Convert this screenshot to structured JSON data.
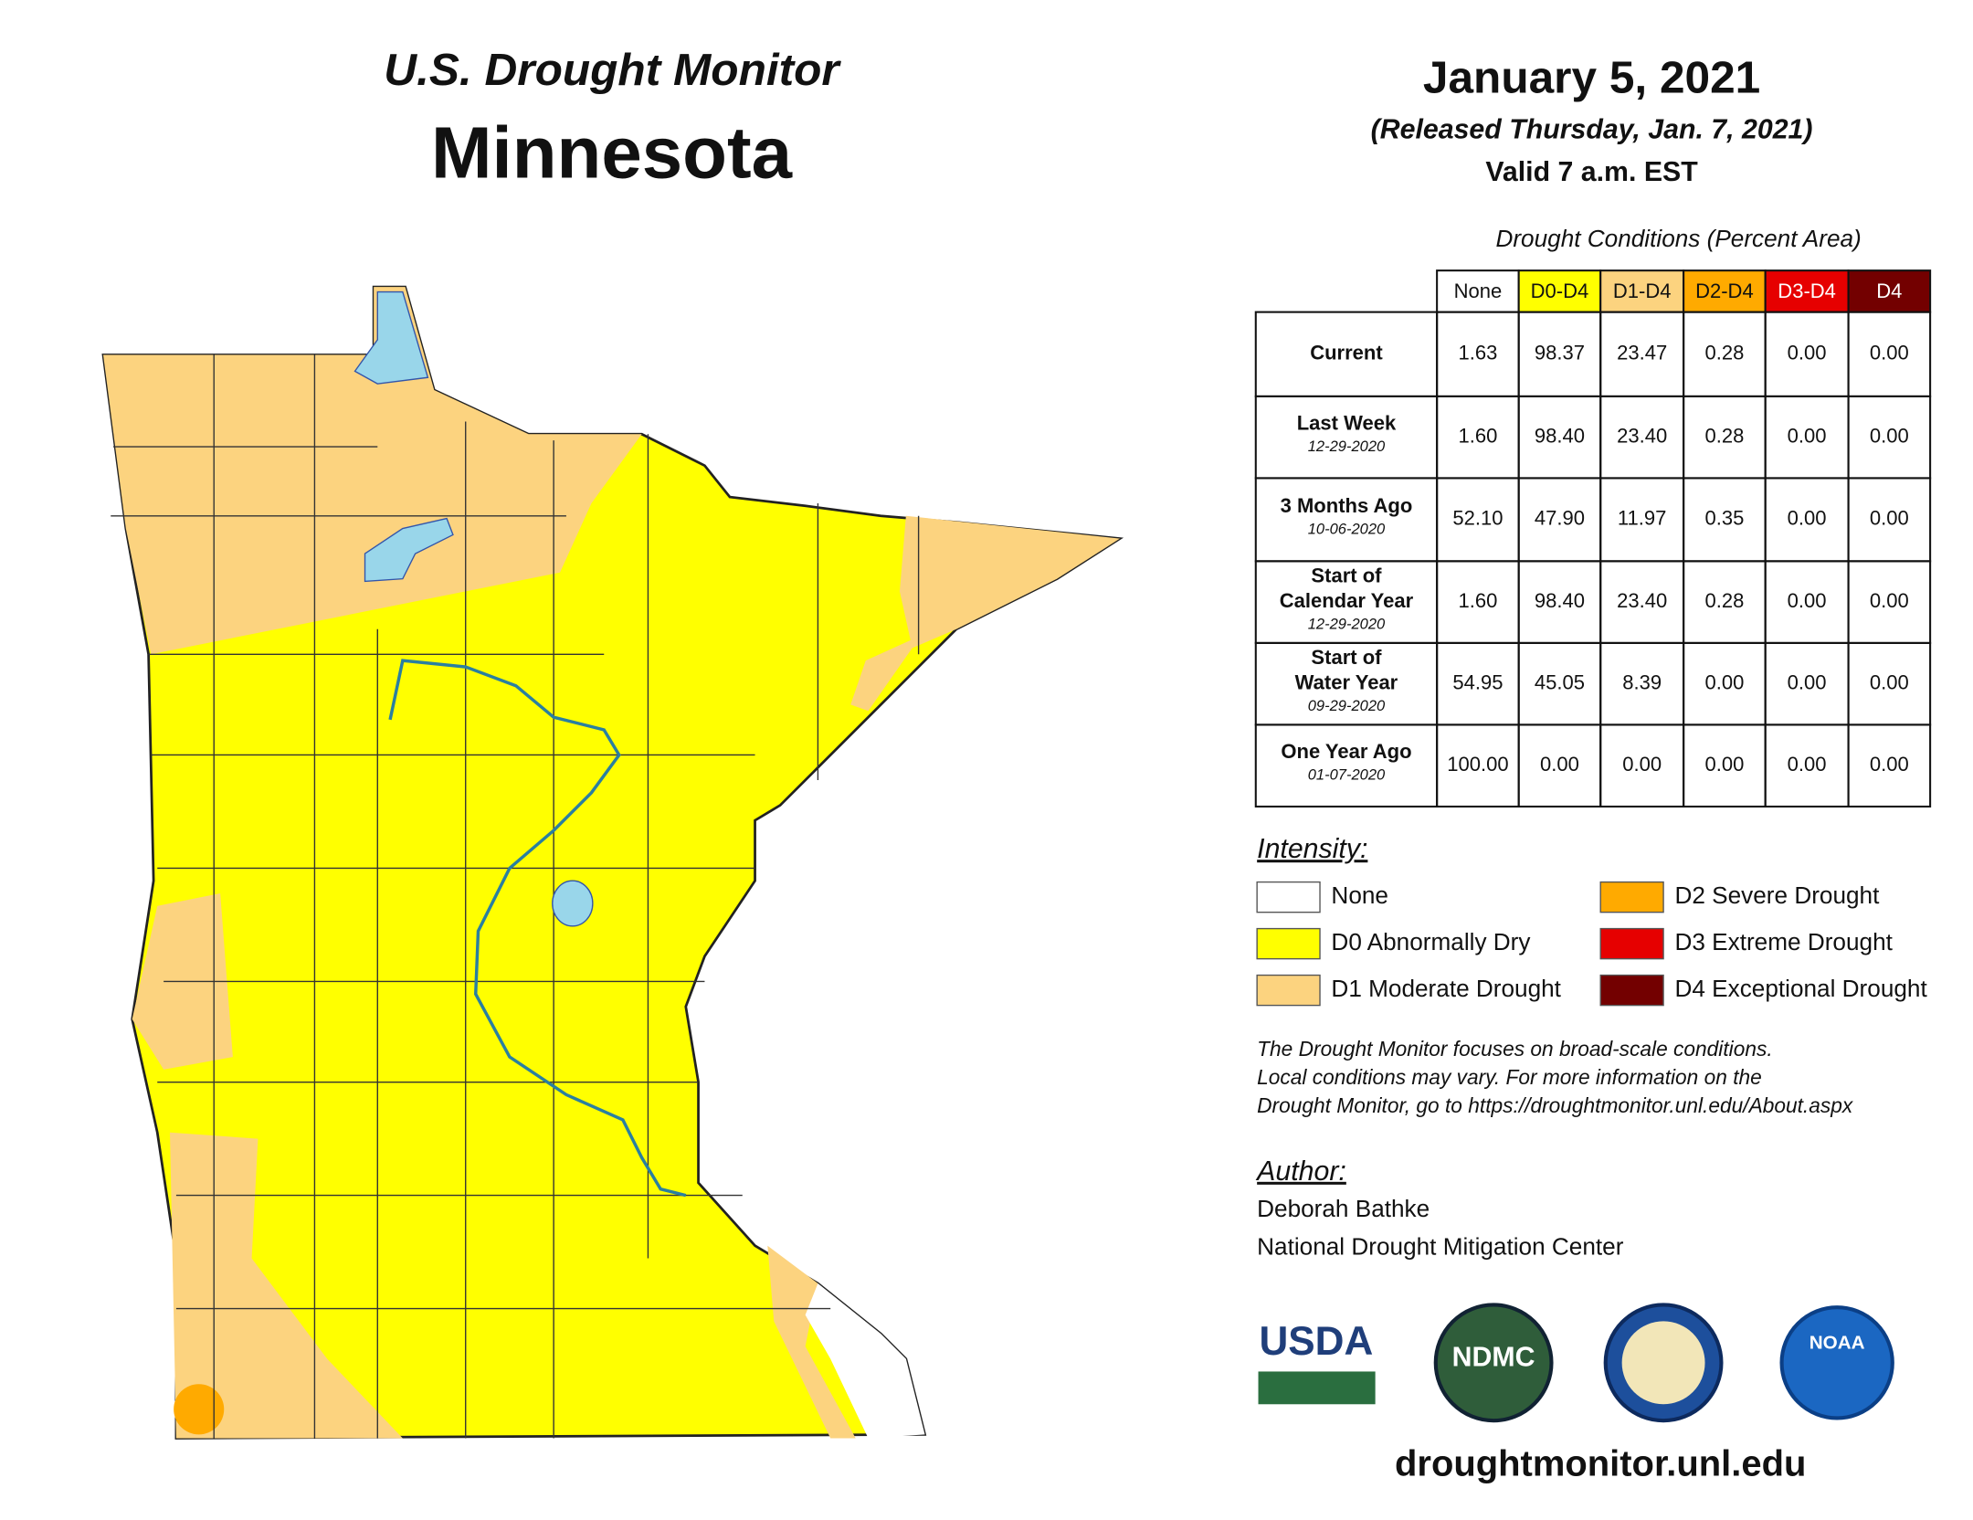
{
  "header": {
    "title": "U.S. Drought Monitor",
    "state": "Minnesota",
    "date": "January 5, 2021",
    "released": "(Released Thursday, Jan. 7, 2021)",
    "valid": "Valid 7 a.m. EST"
  },
  "table": {
    "caption": "Drought Conditions (Percent Area)",
    "columns": [
      {
        "label": "None",
        "color": "#ffffff",
        "text_color": "#111111"
      },
      {
        "label": "D0-D4",
        "color": "#ffff00",
        "text_color": "#111111"
      },
      {
        "label": "D1-D4",
        "color": "#fcd37f",
        "text_color": "#111111"
      },
      {
        "label": "D2-D4",
        "color": "#ffaa00",
        "text_color": "#111111"
      },
      {
        "label": "D3-D4",
        "color": "#e60000",
        "text_color": "#ffffff"
      },
      {
        "label": "D4",
        "color": "#730000",
        "text_color": "#ffffff"
      }
    ],
    "rows": [
      {
        "label": [
          "Current"
        ],
        "values": [
          "1.63",
          "98.37",
          "23.47",
          "0.28",
          "0.00",
          "0.00"
        ]
      },
      {
        "label": [
          "Last Week"
        ],
        "date": "12-29-2020",
        "values": [
          "1.60",
          "98.40",
          "23.40",
          "0.28",
          "0.00",
          "0.00"
        ]
      },
      {
        "label": [
          "3 Months Ago"
        ],
        "date": "10-06-2020",
        "values": [
          "52.10",
          "47.90",
          "11.97",
          "0.35",
          "0.00",
          "0.00"
        ]
      },
      {
        "label": [
          "Start of",
          "Calendar Year"
        ],
        "date": "12-29-2020",
        "values": [
          "1.60",
          "98.40",
          "23.40",
          "0.28",
          "0.00",
          "0.00"
        ]
      },
      {
        "label": [
          "Start of",
          "Water Year"
        ],
        "date": "09-29-2020",
        "values": [
          "54.95",
          "45.05",
          "8.39",
          "0.00",
          "0.00",
          "0.00"
        ]
      },
      {
        "label": [
          "One Year Ago"
        ],
        "date": "01-07-2020",
        "values": [
          "100.00",
          "0.00",
          "0.00",
          "0.00",
          "0.00",
          "0.00"
        ]
      }
    ]
  },
  "legend": {
    "title": "Intensity:",
    "items": [
      {
        "label": "None",
        "color": "#ffffff"
      },
      {
        "label": "D0 Abnormally Dry",
        "color": "#ffff00"
      },
      {
        "label": "D1 Moderate Drought",
        "color": "#fcd37f"
      },
      {
        "label": "D2 Severe Drought",
        "color": "#ffaa00"
      },
      {
        "label": "D3 Extreme Drought",
        "color": "#e60000"
      },
      {
        "label": "D4 Exceptional Drought",
        "color": "#730000"
      }
    ]
  },
  "note": [
    "The Drought Monitor focuses on broad-scale conditions.",
    "Local conditions may vary. For more information on the",
    "Drought Monitor, go to https://droughtmonitor.unl.edu/About.aspx"
  ],
  "author": {
    "title": "Author:",
    "lines": [
      "Deborah Bathke",
      "National Drought Mitigation Center"
    ]
  },
  "logos": [
    "USDA",
    "NDMC",
    "NOAA"
  ],
  "url": "droughtmonitor.unl.edu"
}
